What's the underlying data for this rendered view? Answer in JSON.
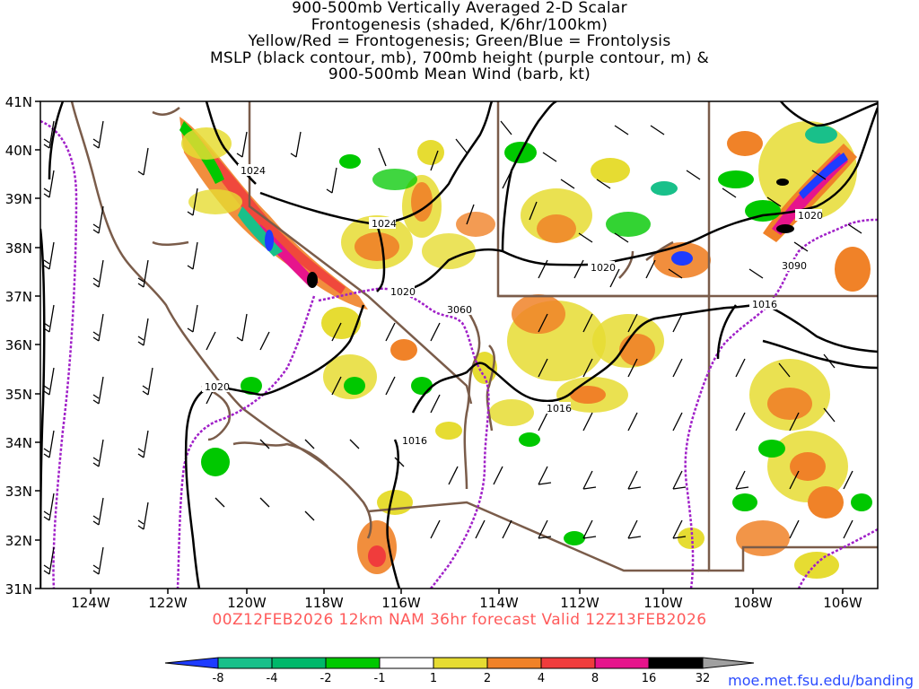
{
  "title": {
    "lines": [
      "900-500mb Vertically Averaged 2-D Scalar",
      "Frontogenesis (shaded, K/6hr/100km)",
      "Yellow/Red = Frontogenesis;  Green/Blue = Frontolysis",
      "MSLP (black contour, mb), 700mb height (purple contour, m) &",
      "900-500mb Mean Wind (barb, kt)"
    ]
  },
  "axes": {
    "lat_labels": [
      "41N",
      "40N",
      "39N",
      "38N",
      "37N",
      "36N",
      "35N",
      "34N",
      "33N",
      "32N",
      "31N"
    ],
    "lon_labels": [
      "124W",
      "122W",
      "120W",
      "118W",
      "116W",
      "114W",
      "112W",
      "110W",
      "108W",
      "106W"
    ]
  },
  "contour_labels": {
    "mslp": [
      "1024",
      "1024",
      "1020",
      "1020",
      "1020",
      "1016",
      "1016",
      "1016",
      "1020"
    ],
    "height_700mb": [
      "3060",
      "3090"
    ]
  },
  "colorbar": {
    "labels": [
      "-8",
      "-4",
      "-2",
      "-1",
      "1",
      "2",
      "4",
      "8",
      "16",
      "32"
    ],
    "colors": [
      "#1e3cff",
      "#19c08a",
      "#00b86a",
      "#00c800",
      "#ffffff",
      "#e6dc32",
      "#f08228",
      "#f03c3c",
      "#e6148c",
      "#000000",
      "#a0a0a0"
    ]
  },
  "valid_time": "00Z12FEB2026 12km NAM 36hr forecast Valid 12Z13FEB2026",
  "source_url": "moe.met.fsu.edu/banding"
}
